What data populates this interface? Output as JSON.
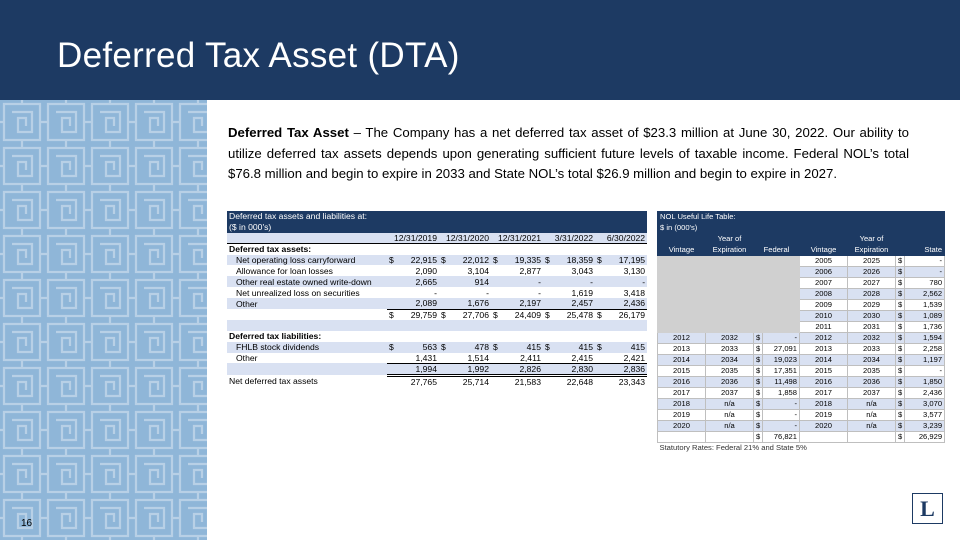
{
  "slide": {
    "title": "Deferred Tax Asset (DTA)",
    "page_number": "16",
    "logo_letter": "L"
  },
  "intro": {
    "bold": "Deferred Tax Asset",
    "text": " – The Company has a net deferred tax asset of $23.3 million at June 30, 2022. Our ability to utilize deferred tax assets depends upon generating sufficient future levels of taxable income. Federal NOL’s total $76.8 million and begin to expire in 2033 and State NOL’s total $26.9 million and begin to expire in 2027."
  },
  "dta_table": {
    "title": "Deferred tax assets and liabilities at:",
    "units": "($ in 000's)",
    "columns": [
      "12/31/2019",
      "12/31/2020",
      "12/31/2021",
      "3/31/2022",
      "6/30/2022"
    ],
    "assets_header": "Deferred tax assets:",
    "assets": [
      {
        "label": "Net operating loss carryforward",
        "dollar": true,
        "values": [
          "22,915",
          "22,012",
          "19,335",
          "18,359",
          "17,195"
        ]
      },
      {
        "label": "Allowance for loan losses",
        "dollar": false,
        "values": [
          "2,090",
          "3,104",
          "2,877",
          "3,043",
          "3,130"
        ]
      },
      {
        "label": "Other real estate owned write-down",
        "dollar": false,
        "values": [
          "2,665",
          "914",
          "-",
          "-",
          "-"
        ]
      },
      {
        "label": "Net unrealized loss on securities",
        "dollar": false,
        "values": [
          "-",
          "-",
          "-",
          "1,619",
          "3,418"
        ]
      },
      {
        "label": "Other",
        "dollar": false,
        "values": [
          "2,089",
          "1,676",
          "2,197",
          "2,457",
          "2,436"
        ]
      }
    ],
    "assets_total": [
      "29,759",
      "27,706",
      "24,409",
      "25,478",
      "26,179"
    ],
    "liabilities_header": "Deferred tax liabilities:",
    "liabilities": [
      {
        "label": "FHLB stock dividends",
        "dollar": true,
        "values": [
          "563",
          "478",
          "415",
          "415",
          "415"
        ]
      },
      {
        "label": "Other",
        "dollar": false,
        "values": [
          "1,431",
          "1,514",
          "2,411",
          "2,415",
          "2,421"
        ]
      }
    ],
    "liabilities_total": [
      "1,994",
      "1,992",
      "2,826",
      "2,830",
      "2,836"
    ],
    "net_label": "Net deferred tax assets",
    "net": [
      "27,765",
      "25,714",
      "21,583",
      "22,648",
      "23,343"
    ],
    "dollar_sign": "$"
  },
  "nol_table": {
    "title": "NOL Useful Life Table:",
    "units": "$ in (000's)",
    "header_top": [
      "",
      "Year of",
      "",
      "",
      "Year of",
      ""
    ],
    "header": [
      "Vintage",
      "Expiration",
      "Federal",
      "Vintage",
      "Expiration",
      "State"
    ],
    "rows": [
      {
        "fv": "",
        "fe": "",
        "fd": "",
        "sv": "2005",
        "se": "2025",
        "sd": "-"
      },
      {
        "fv": "",
        "fe": "",
        "fd": "",
        "sv": "2006",
        "se": "2026",
        "sd": "-"
      },
      {
        "fv": "",
        "fe": "",
        "fd": "",
        "sv": "2007",
        "se": "2027",
        "sd": "780"
      },
      {
        "fv": "",
        "fe": "",
        "fd": "",
        "sv": "2008",
        "se": "2028",
        "sd": "2,562"
      },
      {
        "fv": "",
        "fe": "",
        "fd": "",
        "sv": "2009",
        "se": "2029",
        "sd": "1,539"
      },
      {
        "fv": "",
        "fe": "",
        "fd": "",
        "sv": "2010",
        "se": "2030",
        "sd": "1,089"
      },
      {
        "fv": "",
        "fe": "",
        "fd": "",
        "sv": "2011",
        "se": "2031",
        "sd": "1,736"
      },
      {
        "fv": "2012",
        "fe": "2032",
        "fd": "-",
        "sv": "2012",
        "se": "2032",
        "sd": "1,594"
      },
      {
        "fv": "2013",
        "fe": "2033",
        "fd": "27,091",
        "sv": "2013",
        "se": "2033",
        "sd": "2,258"
      },
      {
        "fv": "2014",
        "fe": "2034",
        "fd": "19,023",
        "sv": "2014",
        "se": "2034",
        "sd": "1,197"
      },
      {
        "fv": "2015",
        "fe": "2035",
        "fd": "17,351",
        "sv": "2015",
        "se": "2035",
        "sd": "-"
      },
      {
        "fv": "2016",
        "fe": "2036",
        "fd": "11,498",
        "sv": "2016",
        "se": "2036",
        "sd": "1,850"
      },
      {
        "fv": "2017",
        "fe": "2037",
        "fd": "1,858",
        "sv": "2017",
        "se": "2037",
        "sd": "2,436"
      },
      {
        "fv": "2018",
        "fe": "n/a",
        "fd": "-",
        "sv": "2018",
        "se": "n/a",
        "sd": "3,070"
      },
      {
        "fv": "2019",
        "fe": "n/a",
        "fd": "-",
        "sv": "2019",
        "se": "n/a",
        "sd": "3,577"
      },
      {
        "fv": "2020",
        "fe": "n/a",
        "fd": "-",
        "sv": "2020",
        "se": "n/a",
        "sd": "3,239"
      }
    ],
    "federal_total": "76,821",
    "state_total": "26,929",
    "footnote": "Statutory Rates: Federal 21% and State 5%",
    "dollar_sign": "$"
  }
}
